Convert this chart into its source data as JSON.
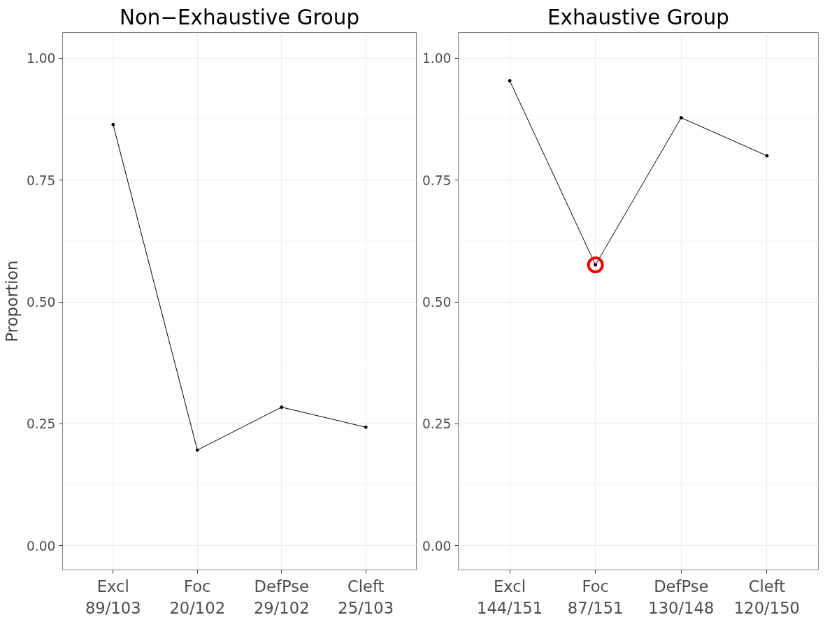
{
  "chart_data": [
    {
      "type": "line",
      "title": "Non−Exhaustive Group",
      "ylabel": "Proportion",
      "categories": [
        "Excl\n89/103",
        "Foc\n20/102",
        "DefPse\n29/102",
        "Cleft\n25/103"
      ],
      "series": [
        {
          "color": "#000000",
          "values": [
            0.864,
            0.196,
            0.284,
            0.243
          ]
        }
      ],
      "ylim": [
        -0.05,
        1.053
      ],
      "yticks": [
        {
          "value": 0,
          "label": "0.00"
        },
        {
          "value": 0.25,
          "label": "0.25"
        },
        {
          "value": 0.5,
          "label": "0.50"
        },
        {
          "value": 0.75,
          "label": "0.75"
        },
        {
          "value": 1,
          "label": "1.00"
        }
      ],
      "grid": true,
      "marker": "circle",
      "line_style": "solid"
    },
    {
      "type": "line",
      "title": "Exhaustive Group",
      "categories": [
        "Excl\n144/151",
        "Foc\n87/151",
        "DefPse\n130/148",
        "Cleft\n120/150"
      ],
      "series": [
        {
          "color": "#000000",
          "values": [
            0.954,
            0.576,
            0.878,
            0.8
          ]
        },
        {
          "type": "scatter",
          "color": "#ee0000",
          "values": [
            null,
            0.576,
            null,
            null
          ]
        }
      ],
      "ylim": [
        -0.05,
        1.053
      ],
      "yticks": [
        {
          "value": 0,
          "label": "0.00"
        },
        {
          "value": 0.25,
          "label": "0.25"
        },
        {
          "value": 0.5,
          "label": "0.50"
        },
        {
          "value": 0.75,
          "label": "0.75"
        },
        {
          "value": 1,
          "label": "1.00"
        }
      ],
      "grid": true,
      "marker": "circle",
      "line_style": "solid"
    }
  ]
}
